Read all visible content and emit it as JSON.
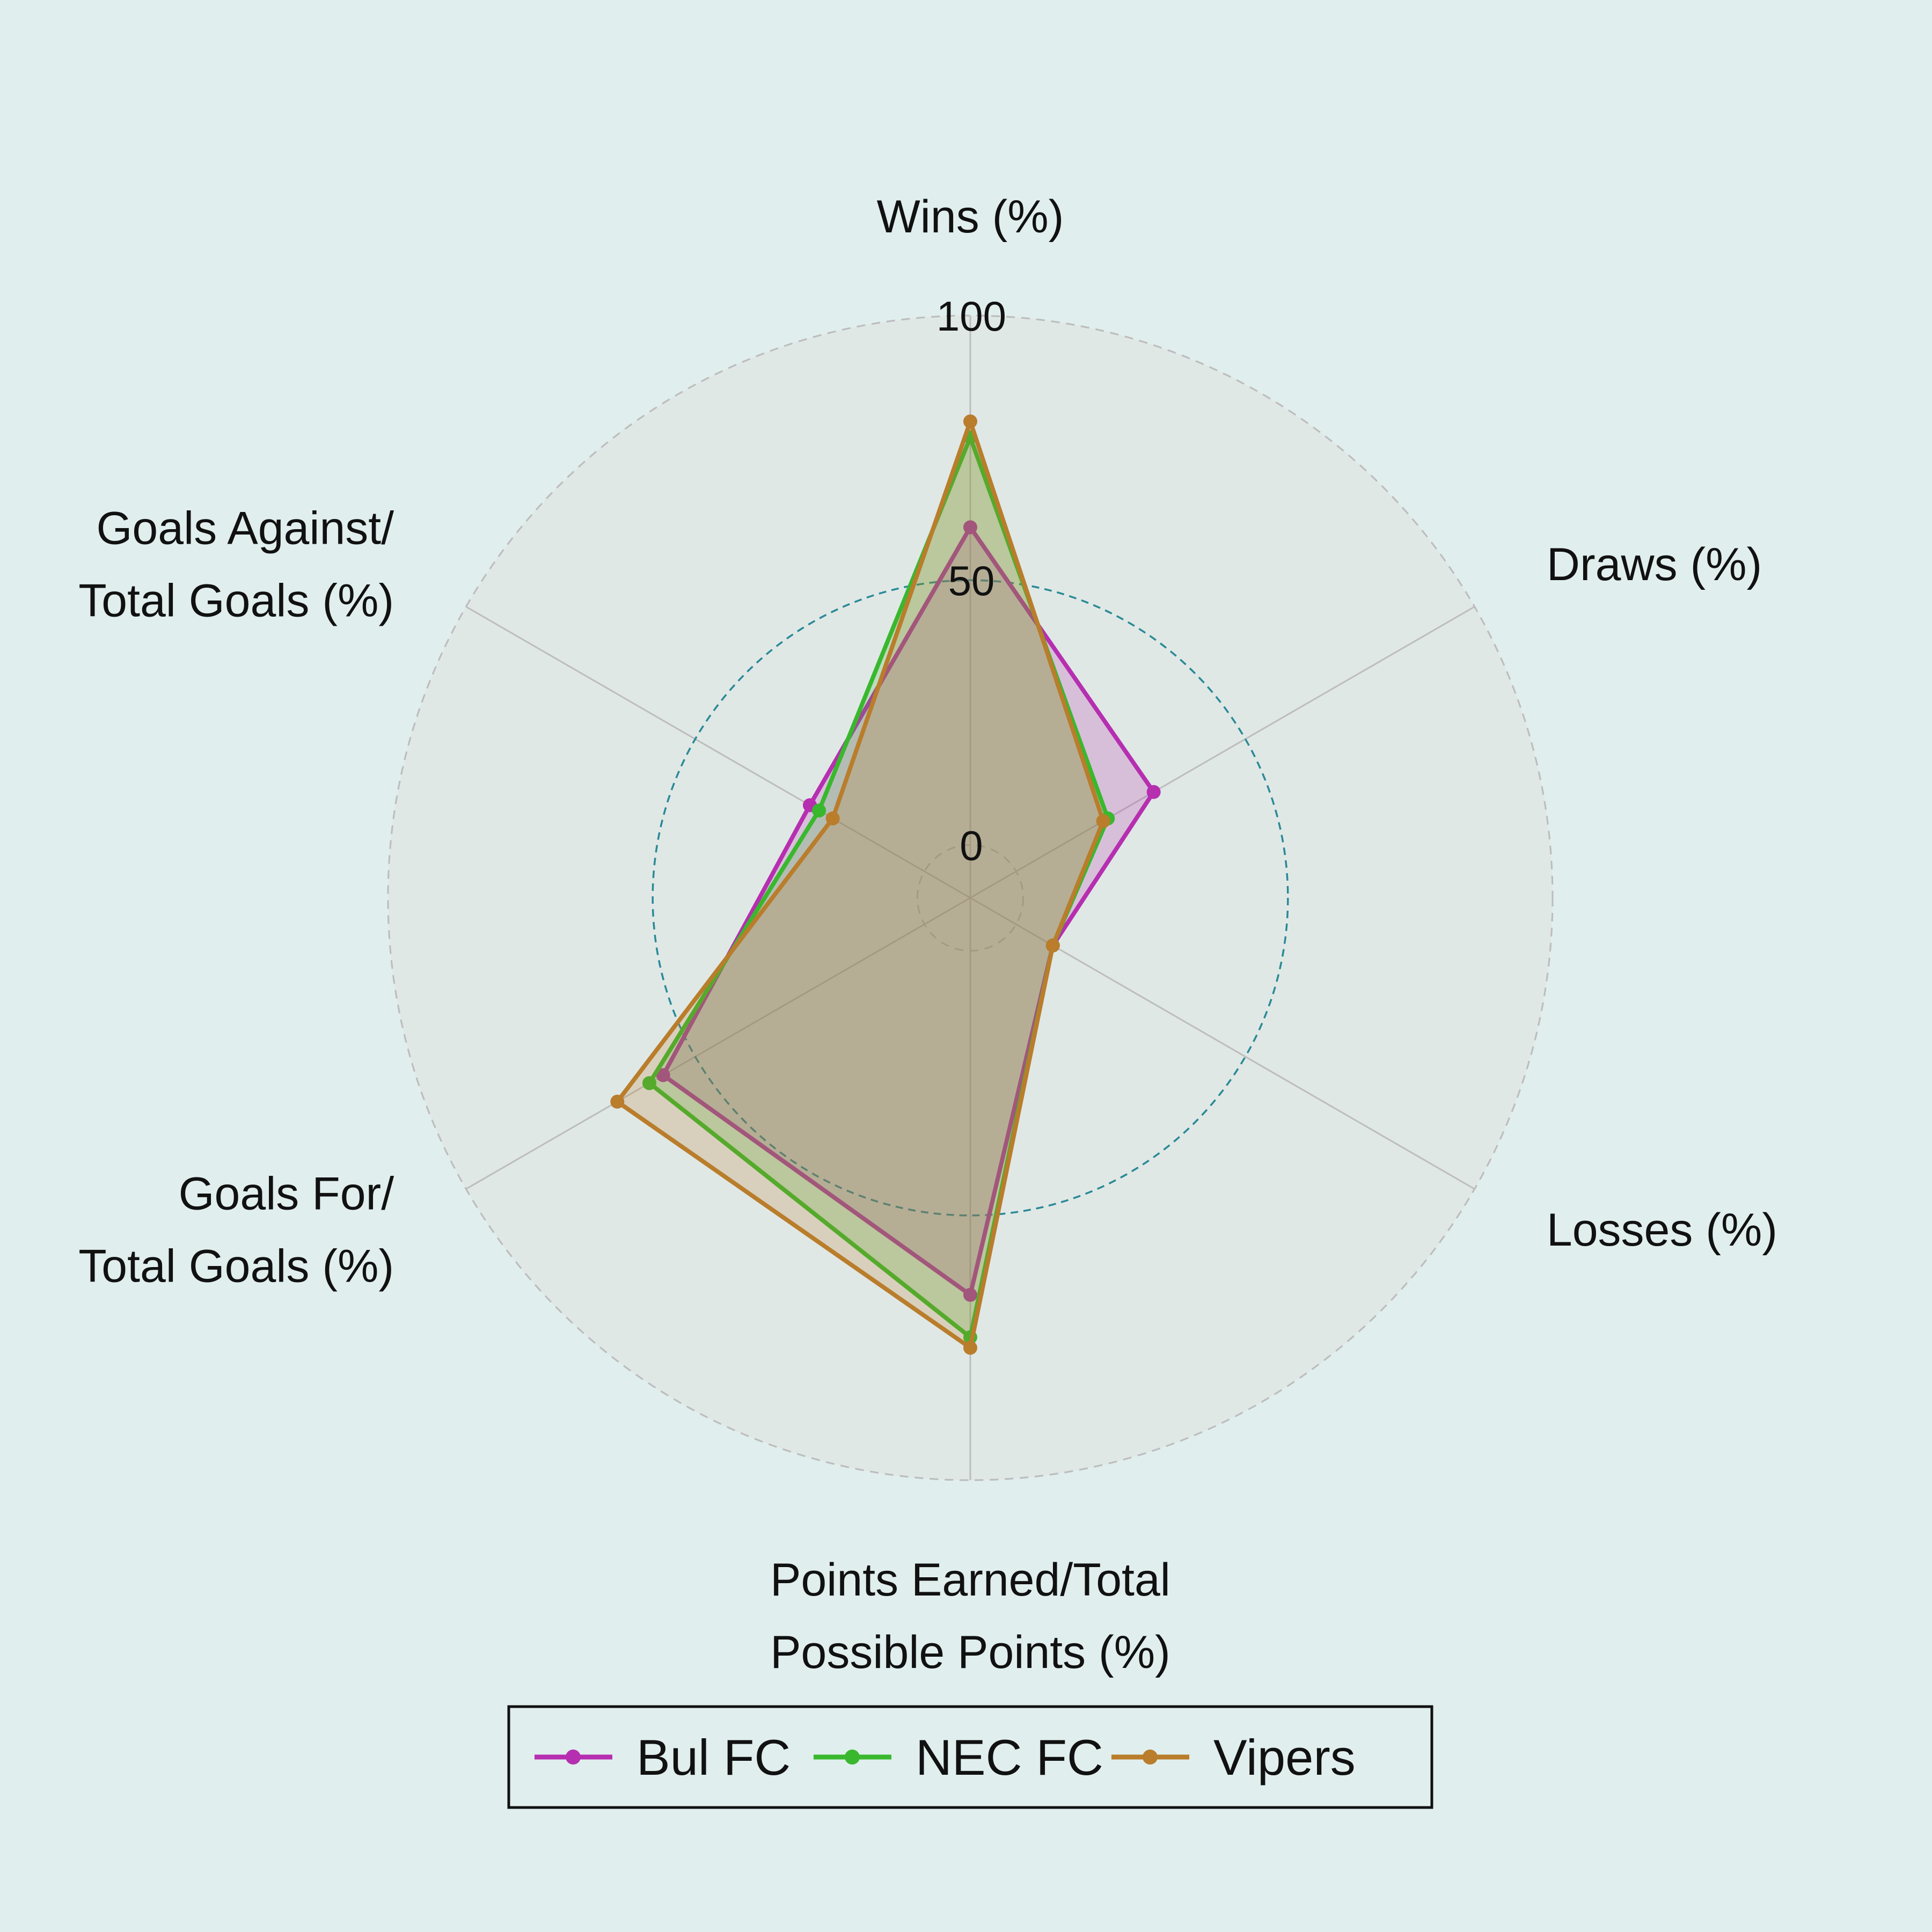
{
  "chart_data": {
    "type": "radar",
    "axes": [
      [
        "Wins (%)"
      ],
      [
        "Draws (%)"
      ],
      [
        "Losses (%)"
      ],
      [
        "Points Earned/Total",
        "Possible Points (%)"
      ],
      [
        "Goals For/",
        "Total Goals (%)"
      ],
      [
        "Goals Against/",
        "Total Goals (%)"
      ]
    ],
    "rlim": [
      -10,
      100
    ],
    "rings": [
      0,
      50,
      100
    ],
    "ring_labels": [
      "0",
      "50",
      "100"
    ],
    "highlighted_ring": 50,
    "legend_position": "bottom-center",
    "series": [
      {
        "name": "Bul FC",
        "color": "#b62fb0",
        "values": [
          60,
          30,
          8,
          65,
          57,
          25
        ]
      },
      {
        "name": "NEC FC",
        "color": "#39b82e",
        "values": [
          77,
          20,
          8,
          73,
          60,
          23
        ]
      },
      {
        "name": "Vipers",
        "color": "#b97d2b",
        "values": [
          80,
          19,
          8,
          75,
          67,
          20
        ]
      }
    ]
  }
}
